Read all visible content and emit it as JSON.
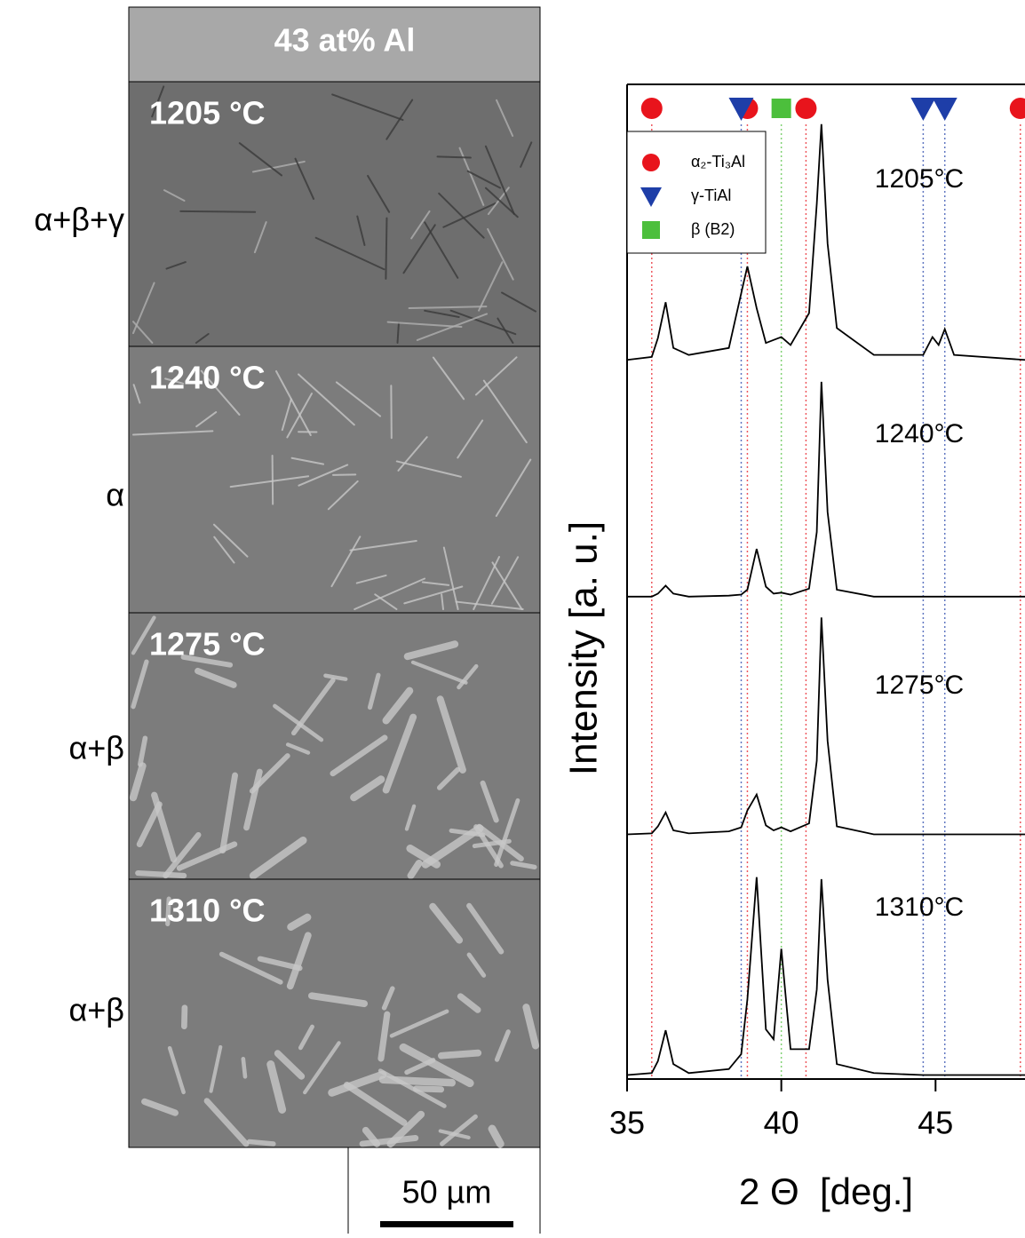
{
  "figure_label": "43 at% Al",
  "micrographs": [
    {
      "temperature": "1205 °C",
      "phases": "α+β+γ"
    },
    {
      "temperature": "1240 °C",
      "phases": "α"
    },
    {
      "temperature": "1275 °C",
      "phases": "α+β"
    },
    {
      "temperature": "1310 °C",
      "phases": "α+β"
    }
  ],
  "scale_bar": "50 µm",
  "chart_data": {
    "type": "line",
    "xlabel": "2 Θ  [deg.]",
    "ylabel": "Intensity [a. u.]",
    "xlim": [
      35,
      47.9
    ],
    "ylim": [
      0,
      100
    ],
    "xticks": [
      35,
      40,
      45
    ],
    "x": [
      35,
      35.8,
      36.0,
      36.25,
      36.5,
      37,
      38.3,
      38.7,
      38.9,
      39.2,
      39.5,
      39.75,
      40.0,
      40.3,
      40.9,
      41.15,
      41.3,
      41.5,
      41.8,
      43,
      44.6,
      44.9,
      45.1,
      45.3,
      45.6,
      47.9
    ],
    "series": [
      {
        "name": "1205°C",
        "color": "#000000",
        "values": [
          72.3,
          72.6,
          74.5,
          78.1,
          73.5,
          72.8,
          73.5,
          79,
          81.7,
          77.5,
          74,
          74.3,
          74.6,
          73.8,
          77,
          88,
          96,
          84,
          75.5,
          72.8,
          72.8,
          74.6,
          73.8,
          75.4,
          72.8,
          72.3
        ]
      },
      {
        "name": "1240°C",
        "color": "#000000",
        "values": [
          48.5,
          48.5,
          48.8,
          49.6,
          48.8,
          48.5,
          48.6,
          48.7,
          49.2,
          53.3,
          49.5,
          48.8,
          48.9,
          48.7,
          49.3,
          55,
          70.1,
          57,
          49.2,
          48.5,
          48.5,
          48.5,
          48.5,
          48.5,
          48.5,
          48.5
        ]
      },
      {
        "name": "1275°C",
        "color": "#000000",
        "values": [
          24.6,
          24.7,
          25.4,
          26.8,
          25,
          24.7,
          24.9,
          25.3,
          27,
          28.6,
          25.5,
          25,
          25.3,
          24.9,
          25.7,
          32,
          46.4,
          34,
          25.4,
          24.6,
          24.6,
          24.6,
          24.6,
          24.6,
          24.6,
          24.6
        ]
      },
      {
        "name": "1310°C",
        "color": "#000000",
        "values": [
          0.4,
          0.6,
          1.8,
          4.9,
          1.5,
          0.6,
          1,
          2.5,
          8,
          20.3,
          5,
          4,
          13.1,
          3,
          3,
          9,
          20.1,
          10,
          1.5,
          0.6,
          0.4,
          0.4,
          0.4,
          0.4,
          0.4,
          0.4
        ]
      }
    ],
    "reference_peaks": [
      {
        "name": "α₂-Ti₃Al",
        "color": "#e8141c",
        "marker": "circle",
        "positions": [
          35.8,
          38.9,
          40.8,
          47.75
        ]
      },
      {
        "name": "γ-TiAl",
        "color": "#1e3ea8",
        "marker": "triangle",
        "positions": [
          38.7,
          44.6,
          45.3
        ]
      },
      {
        "name": "β (B2)",
        "color": "#4cbf3c",
        "marker": "square",
        "positions": [
          40.0
        ]
      }
    ]
  }
}
